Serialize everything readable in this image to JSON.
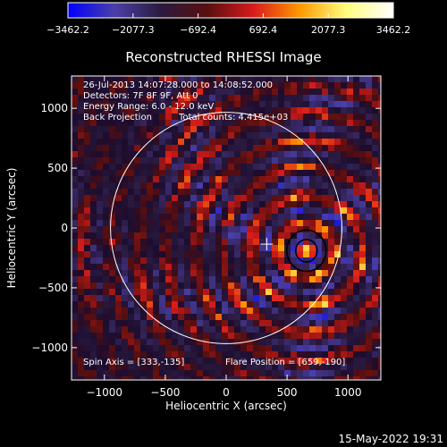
{
  "chart_data": {
    "type": "heatmap",
    "title": "Reconstructed RHESSI Image",
    "xlabel": "Heliocentric X (arcsec)",
    "ylabel": "Heliocentric Y (arcsec)",
    "xlim": [
      -1270,
      1270
    ],
    "ylim": [
      -1270,
      1270
    ],
    "xticks": [
      -1000,
      -500,
      0,
      500,
      1000
    ],
    "yticks": [
      1000,
      500,
      0,
      -500,
      -1000
    ],
    "xtick_labels": [
      "−1000",
      "−500",
      "0",
      "500",
      "1000"
    ],
    "ytick_labels": [
      "1000",
      "500",
      "0",
      "−500",
      "−1000"
    ],
    "colorbar": {
      "ticks": [
        -3462.2,
        -2077.3,
        -692.4,
        692.4,
        2077.3,
        3462.2
      ],
      "tick_labels": [
        "−3462.2",
        "−2077.3",
        "−692.4",
        "692.4",
        "2077.3",
        "3462.2"
      ],
      "colors": [
        "#0000ff",
        "#4b3fa8",
        "#2a1a3f",
        "#5a0f0f",
        "#d81c1c",
        "#ff9a00",
        "#ffff80",
        "#ffffff"
      ]
    },
    "annotations": [
      "26-Jul-2013 14:07:28.000 to 14:08:52.000",
      "Detectors: 7F 8F 9F, Att 0",
      "Energy Range: 6.0 - 12.0 keV",
      "Back Projection",
      "Total counts: 4.415e+03"
    ],
    "spin_axis_label": "Spin Axis = [333,-135]",
    "flare_position_label": "Flare Position = [659,-190]",
    "spin_axis": [
      333,
      -135
    ],
    "flare_position": [
      659,
      -190
    ],
    "solar_disk_radius": 950
  },
  "footer": {
    "timestamp": "15-May-2022 19:31"
  }
}
